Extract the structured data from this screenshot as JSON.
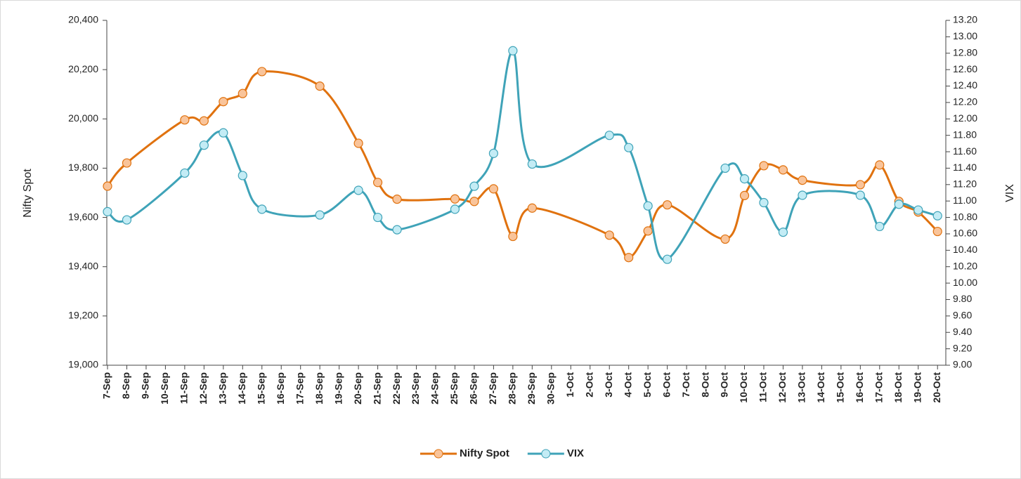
{
  "chart_data": {
    "type": "line",
    "y_label": "Nifty Spot",
    "y2_label": "VIX",
    "categories": [
      "7-Sep",
      "8-Sep",
      "9-Sep",
      "10-Sep",
      "11-Sep",
      "12-Sep",
      "13-Sep",
      "14-Sep",
      "15-Sep",
      "16-Sep",
      "17-Sep",
      "18-Sep",
      "19-Sep",
      "20-Sep",
      "21-Sep",
      "22-Sep",
      "23-Sep",
      "24-Sep",
      "25-Sep",
      "26-Sep",
      "27-Sep",
      "28-Sep",
      "29-Sep",
      "30-Sep",
      "1-Oct",
      "2-Oct",
      "3-Oct",
      "4-Oct",
      "5-Oct",
      "6-Oct",
      "7-Oct",
      "8-Oct",
      "9-Oct",
      "10-Oct",
      "11-Oct",
      "12-Oct",
      "13-Oct",
      "14-Oct",
      "15-Oct",
      "16-Oct",
      "17-Oct",
      "18-Oct",
      "19-Oct",
      "20-Oct"
    ],
    "series": [
      {
        "name": "Nifty Spot",
        "color": "#e0720f",
        "marker_color": "#f9c49a",
        "x": [
          "7-Sep",
          "8-Sep",
          "11-Sep",
          "12-Sep",
          "13-Sep",
          "14-Sep",
          "15-Sep",
          "18-Sep",
          "20-Sep",
          "21-Sep",
          "22-Sep",
          "25-Sep",
          "26-Sep",
          "27-Sep",
          "28-Sep",
          "29-Sep",
          "3-Oct",
          "4-Oct",
          "5-Oct",
          "6-Oct",
          "9-Oct",
          "10-Oct",
          "11-Oct",
          "12-Oct",
          "13-Oct",
          "16-Oct",
          "17-Oct",
          "18-Oct",
          "19-Oct",
          "20-Oct"
        ],
        "values": [
          19727,
          19821,
          19996,
          19992,
          20070,
          20103,
          20192,
          20133,
          19901,
          19742,
          19674,
          19675,
          19665,
          19716,
          19523,
          19638,
          19528,
          19437,
          19545,
          19651,
          19512,
          19689,
          19810,
          19793,
          19751,
          19733,
          19813,
          19665,
          19622,
          19543
        ]
      },
      {
        "name": "VIX",
        "color": "#3fa3b8",
        "marker_color": "#c3ecf5",
        "axis": "y2",
        "x": [
          "7-Sep",
          "8-Sep",
          "11-Sep",
          "12-Sep",
          "13-Sep",
          "14-Sep",
          "15-Sep",
          "18-Sep",
          "20-Sep",
          "21-Sep",
          "22-Sep",
          "25-Sep",
          "26-Sep",
          "27-Sep",
          "28-Sep",
          "29-Sep",
          "3-Oct",
          "4-Oct",
          "5-Oct",
          "6-Oct",
          "9-Oct",
          "10-Oct",
          "11-Oct",
          "12-Oct",
          "13-Oct",
          "16-Oct",
          "17-Oct",
          "18-Oct",
          "19-Oct",
          "20-Oct"
        ],
        "values": [
          10.87,
          10.77,
          11.34,
          11.68,
          11.83,
          11.31,
          10.9,
          10.83,
          11.13,
          10.8,
          10.65,
          10.9,
          11.18,
          11.58,
          12.83,
          11.45,
          11.8,
          11.65,
          10.94,
          10.29,
          11.4,
          11.27,
          10.98,
          10.62,
          11.07,
          11.07,
          10.69,
          10.96,
          10.89,
          10.82
        ]
      }
    ],
    "ylim": [
      19000,
      20400
    ],
    "yticks": [
      {
        "value": 19000,
        "label": "19,000"
      },
      {
        "value": 19200,
        "label": "19,200"
      },
      {
        "value": 19400,
        "label": "19,400"
      },
      {
        "value": 19600,
        "label": "19,600"
      },
      {
        "value": 19800,
        "label": "19,800"
      },
      {
        "value": 20000,
        "label": "20,000"
      },
      {
        "value": 20200,
        "label": "20,200"
      },
      {
        "value": 20400,
        "label": "20,400"
      }
    ],
    "y2lim": [
      9,
      13.2
    ],
    "y2ticks": [
      {
        "value": 9,
        "label": "9.00"
      },
      {
        "value": 9.2,
        "label": "9.20"
      },
      {
        "value": 9.4,
        "label": "9.40"
      },
      {
        "value": 9.6,
        "label": "9.60"
      },
      {
        "value": 9.8,
        "label": "9.80"
      },
      {
        "value": 10,
        "label": "10.00"
      },
      {
        "value": 10.2,
        "label": "10.20"
      },
      {
        "value": 10.4,
        "label": "10.40"
      },
      {
        "value": 10.6,
        "label": "10.60"
      },
      {
        "value": 10.8,
        "label": "10.80"
      },
      {
        "value": 11,
        "label": "11.00"
      },
      {
        "value": 11.2,
        "label": "11.20"
      },
      {
        "value": 11.4,
        "label": "11.40"
      },
      {
        "value": 11.6,
        "label": "11.60"
      },
      {
        "value": 11.8,
        "label": "11.80"
      },
      {
        "value": 12,
        "label": "12.00"
      },
      {
        "value": 12.2,
        "label": "12.20"
      },
      {
        "value": 12.4,
        "label": "12.40"
      },
      {
        "value": 12.6,
        "label": "12.60"
      },
      {
        "value": 12.8,
        "label": "12.80"
      },
      {
        "value": 13,
        "label": "13.00"
      },
      {
        "value": 13.2,
        "label": "13.20"
      }
    ],
    "legend": "bottom"
  }
}
